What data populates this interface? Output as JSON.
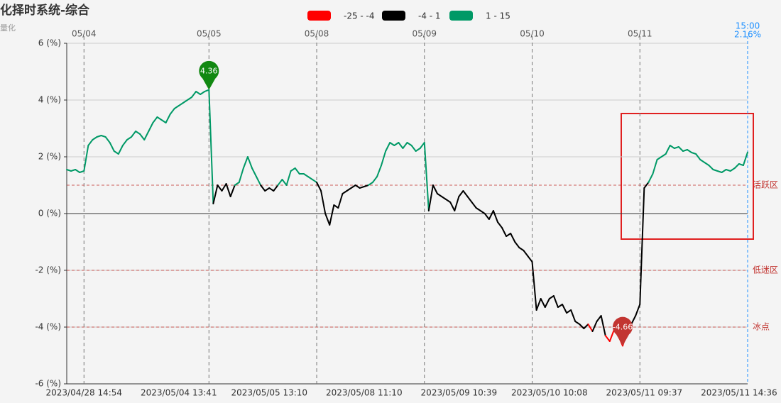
{
  "chart_data": {
    "type": "line",
    "title": "化择时系统-综合",
    "subtitle": "量化",
    "pieces": [
      {
        "min": -25,
        "max": -4,
        "color": "#ff0000",
        "label": "-25 - -4"
      },
      {
        "min": -4,
        "max": 1,
        "color": "#000000",
        "label": "-4 - 1"
      },
      {
        "min": 1,
        "max": 15,
        "color": "#009966",
        "label": "1 - 15"
      }
    ],
    "x": [
      0,
      1,
      2,
      3,
      4,
      5,
      6,
      7,
      8,
      9,
      10,
      11,
      12,
      13,
      14,
      15,
      16,
      17,
      18,
      19,
      20,
      21,
      22,
      23,
      24,
      25,
      26,
      27,
      28,
      29,
      30,
      31,
      32,
      33,
      34,
      35,
      36,
      37,
      38,
      39,
      40,
      41,
      42,
      43,
      44,
      45,
      46,
      47,
      48,
      49,
      50,
      51,
      52,
      53,
      54,
      55,
      56,
      57,
      58,
      59,
      60,
      61,
      62,
      63,
      64,
      65,
      66,
      67,
      68,
      69,
      70,
      71,
      72,
      73,
      74,
      75,
      76,
      77,
      78,
      79,
      80,
      81,
      82,
      83,
      84,
      85,
      86,
      87,
      88,
      89,
      90,
      91,
      92,
      93,
      94,
      95,
      96,
      97,
      98,
      99,
      100,
      101,
      102,
      103,
      104,
      105,
      106,
      107,
      108,
      109,
      110,
      111,
      112,
      113,
      114,
      115,
      116,
      117,
      118,
      119,
      120,
      121,
      122,
      123,
      124,
      125,
      126,
      127,
      128,
      129,
      130,
      131,
      132,
      133,
      134,
      135,
      136,
      137,
      138,
      139,
      140,
      141,
      142,
      143,
      144,
      145,
      146,
      147,
      148,
      149,
      150,
      151,
      152,
      153,
      154,
      155,
      156,
      157,
      158
    ],
    "series": [
      {
        "name": "综合",
        "values": [
          1.55,
          1.5,
          1.55,
          1.45,
          1.5,
          2.4,
          2.6,
          2.7,
          2.75,
          2.7,
          2.5,
          2.2,
          2.1,
          2.4,
          2.6,
          2.7,
          2.9,
          2.8,
          2.6,
          2.9,
          3.2,
          3.4,
          3.3,
          3.2,
          3.5,
          3.7,
          3.8,
          3.9,
          4.0,
          4.1,
          4.3,
          4.2,
          4.3,
          4.36,
          0.35,
          1.0,
          0.8,
          1.05,
          0.6,
          1.0,
          1.1,
          1.6,
          2.0,
          1.6,
          1.3,
          1.0,
          0.8,
          0.9,
          0.8,
          1.0,
          1.2,
          1.0,
          1.5,
          1.6,
          1.4,
          1.4,
          1.3,
          1.2,
          1.1,
          0.8,
          0.0,
          -0.4,
          0.3,
          0.2,
          0.7,
          0.8,
          0.9,
          1.0,
          0.9,
          0.95,
          1.0,
          1.1,
          1.3,
          1.7,
          2.2,
          2.5,
          2.4,
          2.5,
          2.3,
          2.5,
          2.4,
          2.2,
          2.3,
          2.5,
          0.1,
          1.0,
          0.7,
          0.6,
          0.5,
          0.4,
          0.1,
          0.6,
          0.8,
          0.6,
          0.4,
          0.2,
          0.1,
          0.0,
          -0.2,
          0.1,
          -0.3,
          -0.5,
          -0.8,
          -0.7,
          -1.0,
          -1.2,
          -1.3,
          -1.5,
          -1.7,
          -3.4,
          -3.0,
          -3.3,
          -3.0,
          -2.9,
          -3.3,
          -3.2,
          -3.5,
          -3.4,
          -3.8,
          -3.9,
          -4.05,
          -3.9,
          -4.15,
          -3.8,
          -3.6,
          -4.3,
          -4.5,
          -4.1,
          -4.3,
          -4.66,
          -4.2,
          -3.9,
          -3.6,
          -3.2,
          0.9,
          1.1,
          1.4,
          1.9,
          2.0,
          2.1,
          2.4,
          2.3,
          2.35,
          2.2,
          2.25,
          2.15,
          2.1,
          1.9,
          1.8,
          1.7,
          1.55,
          1.5,
          1.45,
          1.55,
          1.5,
          1.6,
          1.75,
          1.7,
          2.16
        ]
      }
    ],
    "mark_point_colors": {
      "max": "#118811",
      "min": "#c23531"
    },
    "mark_lines": [
      {
        "value": 1,
        "label": "活跃区"
      },
      {
        "value": -2,
        "label": "低迷区"
      },
      {
        "value": -4,
        "label": "冰点"
      }
    ],
    "mark_line_color": "#c23531",
    "xlim": [
      0,
      158
    ],
    "xticks": [
      {
        "value": 4,
        "label": "2023/04/28 14:54"
      },
      {
        "value": 26,
        "label": "2023/05/04 13:41"
      },
      {
        "value": 47,
        "label": "2023/05/05 13:10"
      },
      {
        "value": 69,
        "label": "2023/05/08 11:10"
      },
      {
        "value": 91,
        "label": "2023/05/09 10:39"
      },
      {
        "value": 112,
        "label": "2023/05/10 10:08"
      },
      {
        "value": 134,
        "label": "2023/05/11 09:37"
      },
      {
        "value": 156,
        "label": "2023/05/11 14:36"
      }
    ],
    "day_lines": [
      {
        "value": 4,
        "label": "05/04"
      },
      {
        "value": 33,
        "label": "05/05"
      },
      {
        "value": 58,
        "label": "05/08"
      },
      {
        "value": 83,
        "label": "05/09"
      },
      {
        "value": 108,
        "label": "05/10"
      },
      {
        "value": 133,
        "label": "05/11"
      }
    ],
    "end_marker": {
      "x": {
        "value": 158,
        "label": "15:00"
      },
      "y": {
        "value": 2.16,
        "label": "2.16%"
      },
      "color": "#1e90ff"
    },
    "ylim": [
      -6,
      6
    ],
    "yticks": [
      {
        "value": -6,
        "label": "-6 (%)"
      },
      {
        "value": -4,
        "label": "-4 (%)"
      },
      {
        "value": -2,
        "label": "-2 (%)"
      },
      {
        "value": 0,
        "label": "0 (%)"
      },
      {
        "value": 2,
        "label": "2 (%)"
      },
      {
        "value": 4,
        "label": "4 (%)"
      },
      {
        "value": 6,
        "label": "6 (%)"
      }
    ],
    "grid": true
  }
}
